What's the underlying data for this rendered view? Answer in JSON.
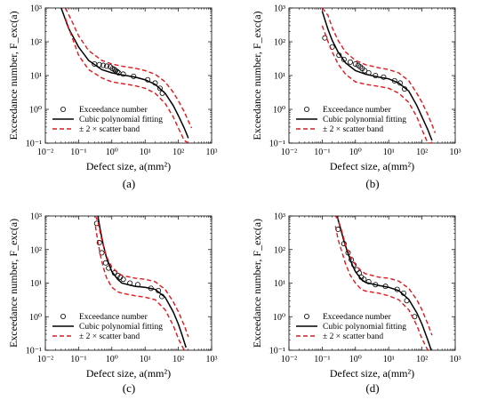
{
  "colors": {
    "fit": "#000000",
    "scatter": "#e3161b",
    "points": "#000000",
    "axes": "#000000"
  },
  "chart_data": [
    {
      "type": "line",
      "panel_label": "(a)",
      "xlabel": "Defect  size,  a(mm²)",
      "ylabel": "Exceedance  number,  F_exc(a)",
      "xscale": "log",
      "yscale": "log",
      "xlim": [
        0.01,
        1000
      ],
      "ylim": [
        0.1,
        1000
      ],
      "x_tick_labels": [
        "10⁻²",
        "10⁻¹",
        "10⁰",
        "10¹",
        "10²",
        "10³"
      ],
      "y_tick_labels": [
        "10⁻¹",
        "10⁰",
        "10¹",
        "10²",
        "10³"
      ],
      "legend_position": "bottom-left",
      "series": [
        {
          "name": "Exceedance number",
          "kind": "scatter",
          "x": [
            0.3,
            0.42,
            0.55,
            0.7,
            0.9,
            1.05,
            1.2,
            1.3,
            1.45,
            1.6,
            2.2,
            4.5,
            12,
            20,
            28,
            33
          ],
          "y": [
            22,
            21,
            20,
            19,
            18,
            16,
            15,
            14,
            13,
            12,
            11,
            9.5,
            7.5,
            6,
            4.2,
            3
          ]
        },
        {
          "name": "Cubic polynomial fitting",
          "kind": "line",
          "x": [
            0.03,
            0.05,
            0.1,
            0.2,
            0.5,
            1,
            2,
            5,
            10,
            20,
            40,
            70,
            100,
            150,
            200
          ],
          "y": [
            1000,
            250,
            70,
            28,
            15,
            12,
            10.5,
            9,
            7.5,
            5.5,
            3.0,
            1.3,
            0.65,
            0.28,
            0.14
          ]
        },
        {
          "name": "± 2 × scatter band",
          "kind": "band",
          "x": [
            0.04,
            0.06,
            0.1,
            0.2,
            0.5,
            1,
            2,
            5,
            10,
            20,
            40,
            70,
            100,
            150,
            200,
            250
          ],
          "upper": [
            1000,
            450,
            150,
            55,
            28,
            22,
            19,
            16.5,
            14,
            11,
            6.5,
            3.2,
            1.8,
            0.85,
            0.45,
            0.28
          ],
          "lower": [
            500,
            160,
            40,
            15,
            8.5,
            6.5,
            5.8,
            5,
            4.2,
            3.0,
            1.5,
            0.6,
            0.28,
            0.12,
            0.1,
            0.1
          ]
        }
      ]
    },
    {
      "type": "line",
      "panel_label": "(b)",
      "xlabel": "Defect  size,  a(mm²)",
      "ylabel": "Exceedance  number,  F_exc(a)",
      "xscale": "log",
      "yscale": "log",
      "xlim": [
        0.01,
        1000
      ],
      "ylim": [
        0.1,
        1000
      ],
      "x_tick_labels": [
        "10⁻²",
        "10⁻¹",
        "10⁰",
        "10¹",
        "10²",
        "10³"
      ],
      "y_tick_labels": [
        "10⁻¹",
        "10⁰",
        "10¹",
        "10²",
        "10³"
      ],
      "legend_position": "bottom-left",
      "series": [
        {
          "name": "Exceedance number",
          "kind": "scatter",
          "x": [
            0.12,
            0.2,
            0.32,
            0.45,
            0.7,
            1.0,
            1.2,
            1.4,
            1.6,
            1.9,
            2.5,
            4,
            7,
            15,
            22,
            30
          ],
          "y": [
            130,
            70,
            40,
            30,
            25,
            22,
            20,
            18,
            16,
            14,
            12,
            10,
            9,
            7,
            6,
            4
          ]
        },
        {
          "name": "Cubic polynomial fitting",
          "kind": "line",
          "x": [
            0.1,
            0.15,
            0.2,
            0.3,
            0.5,
            1,
            2,
            5,
            10,
            20,
            40,
            70,
            100,
            150,
            200
          ],
          "y": [
            800,
            230,
            110,
            50,
            24,
            14,
            11,
            9,
            8,
            6,
            3.5,
            1.3,
            0.6,
            0.25,
            0.12
          ]
        },
        {
          "name": "± 2 × scatter band",
          "kind": "band",
          "x": [
            0.1,
            0.15,
            0.2,
            0.3,
            0.5,
            1,
            2,
            5,
            10,
            20,
            40,
            70,
            100,
            150,
            200,
            250
          ],
          "upper": [
            1000,
            600,
            260,
            110,
            50,
            28,
            21,
            17,
            15,
            12,
            7,
            3,
            1.6,
            0.7,
            0.35,
            0.2
          ],
          "lower": [
            300,
            100,
            50,
            22,
            11,
            6.5,
            5.5,
            4.8,
            4.2,
            3,
            1.6,
            0.6,
            0.25,
            0.1,
            0.1,
            0.1
          ]
        }
      ]
    },
    {
      "type": "line",
      "panel_label": "(c)",
      "xlabel": "Defect  size,  a(mm²)",
      "ylabel": "Exceedance  number,  F_exc(a)",
      "xscale": "log",
      "yscale": "log",
      "xlim": [
        0.01,
        1000
      ],
      "ylim": [
        0.1,
        1000
      ],
      "x_tick_labels": [
        "10⁻²",
        "10⁻¹",
        "10⁰",
        "10¹",
        "10²",
        "10³"
      ],
      "y_tick_labels": [
        "10⁻¹",
        "10⁰",
        "10¹",
        "10²",
        "10³"
      ],
      "legend_position": "bottom-left",
      "series": [
        {
          "name": "Exceedance number",
          "kind": "scatter",
          "x": [
            0.35,
            0.42,
            0.5,
            0.65,
            0.8,
            1.2,
            1.5,
            1.8,
            2.2,
            3.5,
            6,
            15,
            25,
            32
          ],
          "y": [
            600,
            160,
            80,
            40,
            28,
            20,
            17,
            15,
            13,
            10,
            9,
            7,
            6,
            4
          ]
        },
        {
          "name": "Cubic polynomial fitting",
          "kind": "line",
          "x": [
            0.38,
            0.45,
            0.55,
            0.7,
            1,
            1.5,
            2,
            5,
            10,
            20,
            40,
            70,
            100,
            130,
            170
          ],
          "y": [
            1000,
            380,
            140,
            55,
            22,
            13,
            10,
            8,
            7.5,
            6.5,
            3.8,
            1.4,
            0.6,
            0.28,
            0.12
          ]
        },
        {
          "name": "± 2 × scatter band",
          "kind": "band",
          "x": [
            0.32,
            0.38,
            0.45,
            0.55,
            0.7,
            1,
            1.5,
            2,
            5,
            10,
            20,
            40,
            70,
            100,
            150,
            200
          ],
          "upper": [
            1000,
            700,
            300,
            130,
            60,
            30,
            21,
            17,
            14,
            13,
            11,
            6.5,
            2.8,
            1.4,
            0.55,
            0.25
          ],
          "lower": [
            500,
            170,
            70,
            30,
            14,
            7.5,
            5.5,
            5,
            4.2,
            3.8,
            3.2,
            1.6,
            0.55,
            0.22,
            0.1,
            0.1
          ]
        }
      ]
    },
    {
      "type": "line",
      "panel_label": "(d)",
      "xlabel": "Defect  size,  a(mm²)",
      "ylabel": "Exceedance  number,  F_exc(a)",
      "xscale": "log",
      "yscale": "log",
      "xlim": [
        0.01,
        1000
      ],
      "ylim": [
        0.1,
        1000
      ],
      "x_tick_labels": [
        "10⁻²",
        "10⁻¹",
        "10⁰",
        "10¹",
        "10²",
        "10³"
      ],
      "y_tick_labels": [
        "10⁻¹",
        "10⁰",
        "10¹",
        "10²",
        "10³"
      ],
      "legend_position": "bottom-left",
      "series": [
        {
          "name": "Exceedance number",
          "kind": "scatter",
          "x": [
            0.3,
            0.45,
            0.6,
            0.75,
            0.9,
            1.1,
            1.3,
            1.5,
            1.8,
            2.5,
            4,
            8,
            18,
            28,
            35,
            60
          ],
          "y": [
            400,
            150,
            80,
            50,
            35,
            25,
            20,
            15,
            13,
            11,
            9,
            8,
            6.5,
            5,
            3,
            1
          ]
        },
        {
          "name": "Cubic polynomial fitting",
          "kind": "line",
          "x": [
            0.28,
            0.35,
            0.45,
            0.6,
            0.8,
            1,
            1.5,
            2,
            5,
            10,
            20,
            40,
            70,
            100,
            150,
            190
          ],
          "y": [
            1000,
            450,
            180,
            75,
            35,
            22,
            13,
            10.5,
            8.5,
            7.5,
            6,
            3.3,
            1.3,
            0.6,
            0.2,
            0.1
          ]
        },
        {
          "name": "± 2 × scatter band",
          "kind": "band",
          "x": [
            0.25,
            0.3,
            0.4,
            0.5,
            0.7,
            1,
            1.5,
            2,
            5,
            10,
            20,
            40,
            70,
            100,
            150,
            200
          ],
          "upper": [
            1000,
            800,
            320,
            140,
            60,
            35,
            23,
            19,
            15,
            14,
            11.5,
            7,
            3.2,
            1.6,
            0.6,
            0.28
          ],
          "lower": [
            500,
            200,
            80,
            38,
            17,
            10,
            6.5,
            5.8,
            5,
            4.2,
            3.2,
            1.6,
            0.55,
            0.22,
            0.1,
            0.1
          ]
        }
      ]
    }
  ]
}
